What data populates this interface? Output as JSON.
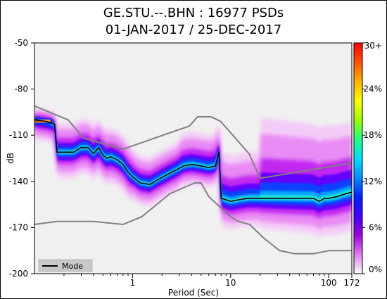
{
  "chart_data": {
    "type": "heatmap",
    "title": "GE.STU.--.BHN : 16977 PSDs",
    "subtitle": "01-JAN-2017 / 25-DEC-2017",
    "xlabel": "Period (Sec)",
    "ylabel": "dB",
    "x_scale": "log",
    "xlim": [
      0.1,
      172
    ],
    "ylim": [
      -200,
      -50
    ],
    "x_ticks": [
      {
        "value": 1,
        "label": "1"
      },
      {
        "value": 10,
        "label": "10"
      },
      {
        "value": 100,
        "label": "100"
      },
      {
        "value": 172,
        "label": "172"
      }
    ],
    "y_ticks": [
      {
        "value": -50,
        "label": "-50"
      },
      {
        "value": -80,
        "label": "-80"
      },
      {
        "value": -110,
        "label": "-110"
      },
      {
        "value": -140,
        "label": "-140"
      },
      {
        "value": -170,
        "label": "-170"
      },
      {
        "value": -200,
        "label": "-200"
      }
    ],
    "colorbar": {
      "range_percent": [
        0,
        30
      ],
      "ticks": [
        {
          "value": 0,
          "label": "0%"
        },
        {
          "value": 6,
          "label": "6%"
        },
        {
          "value": 12,
          "label": "12%"
        },
        {
          "value": 18,
          "label": "18%"
        },
        {
          "value": 24,
          "label": "24%"
        },
        {
          "value": 30,
          "label": "30+"
        }
      ],
      "colors": [
        "#ffffff",
        "#e07cf0",
        "#a000e0",
        "#4000ff",
        "#0020ff",
        "#0090ff",
        "#00e0ff",
        "#20ff80",
        "#a0ff00",
        "#ffff00",
        "#ffb000",
        "#ff5000",
        "#ff0000"
      ]
    },
    "background_color": "#f0f0f0",
    "legend": {
      "label": "Mode",
      "placement": "bottom-left"
    },
    "mode": {
      "period": [
        0.1,
        0.13,
        0.15,
        0.16,
        0.17,
        0.2,
        0.25,
        0.3,
        0.35,
        0.4,
        0.45,
        0.5,
        0.55,
        0.6,
        0.7,
        0.8,
        0.9,
        1,
        1.2,
        1.5,
        1.8,
        2.2,
        2.7,
        3.3,
        4,
        5,
        6,
        7,
        7.6,
        7.8,
        8,
        9,
        10,
        12,
        15,
        20,
        30,
        40,
        50,
        60,
        70,
        80,
        90,
        100,
        120,
        150,
        172
      ],
      "db": [
        -100,
        -101,
        -102,
        -103,
        -121,
        -121,
        -121,
        -118,
        -118,
        -122,
        -118,
        -123,
        -125,
        -124,
        -126,
        -129,
        -134,
        -137,
        -141,
        -142,
        -139,
        -136,
        -133,
        -130,
        -129,
        -130,
        -131,
        -130,
        -121,
        -135,
        -151,
        -152,
        -153,
        -152,
        -151,
        -151,
        -151,
        -151,
        -151,
        -151,
        -151,
        -153,
        -151,
        -151,
        -150,
        -148,
        -147
      ]
    },
    "noise_model_high": {
      "period": [
        0.1,
        0.22,
        0.32,
        0.8,
        3.8,
        4.6,
        6.3,
        7.9,
        15.4,
        20,
        172
      ],
      "db": [
        -91,
        -100,
        -112,
        -119,
        -104,
        -98,
        -98,
        -101,
        -122,
        -138,
        -128
      ]
    },
    "noise_model_low": {
      "period": [
        0.1,
        0.17,
        0.4,
        0.8,
        1.24,
        2.4,
        4.3,
        5,
        6,
        10,
        12,
        15.6,
        21.9,
        31.6,
        45,
        70,
        101,
        154,
        172
      ],
      "db": [
        -168,
        -166,
        -166,
        -168,
        -163,
        -148,
        -141,
        -141,
        -150,
        -163,
        -166,
        -168,
        -177,
        -185,
        -187,
        -187,
        -185,
        -185,
        -185
      ]
    }
  }
}
